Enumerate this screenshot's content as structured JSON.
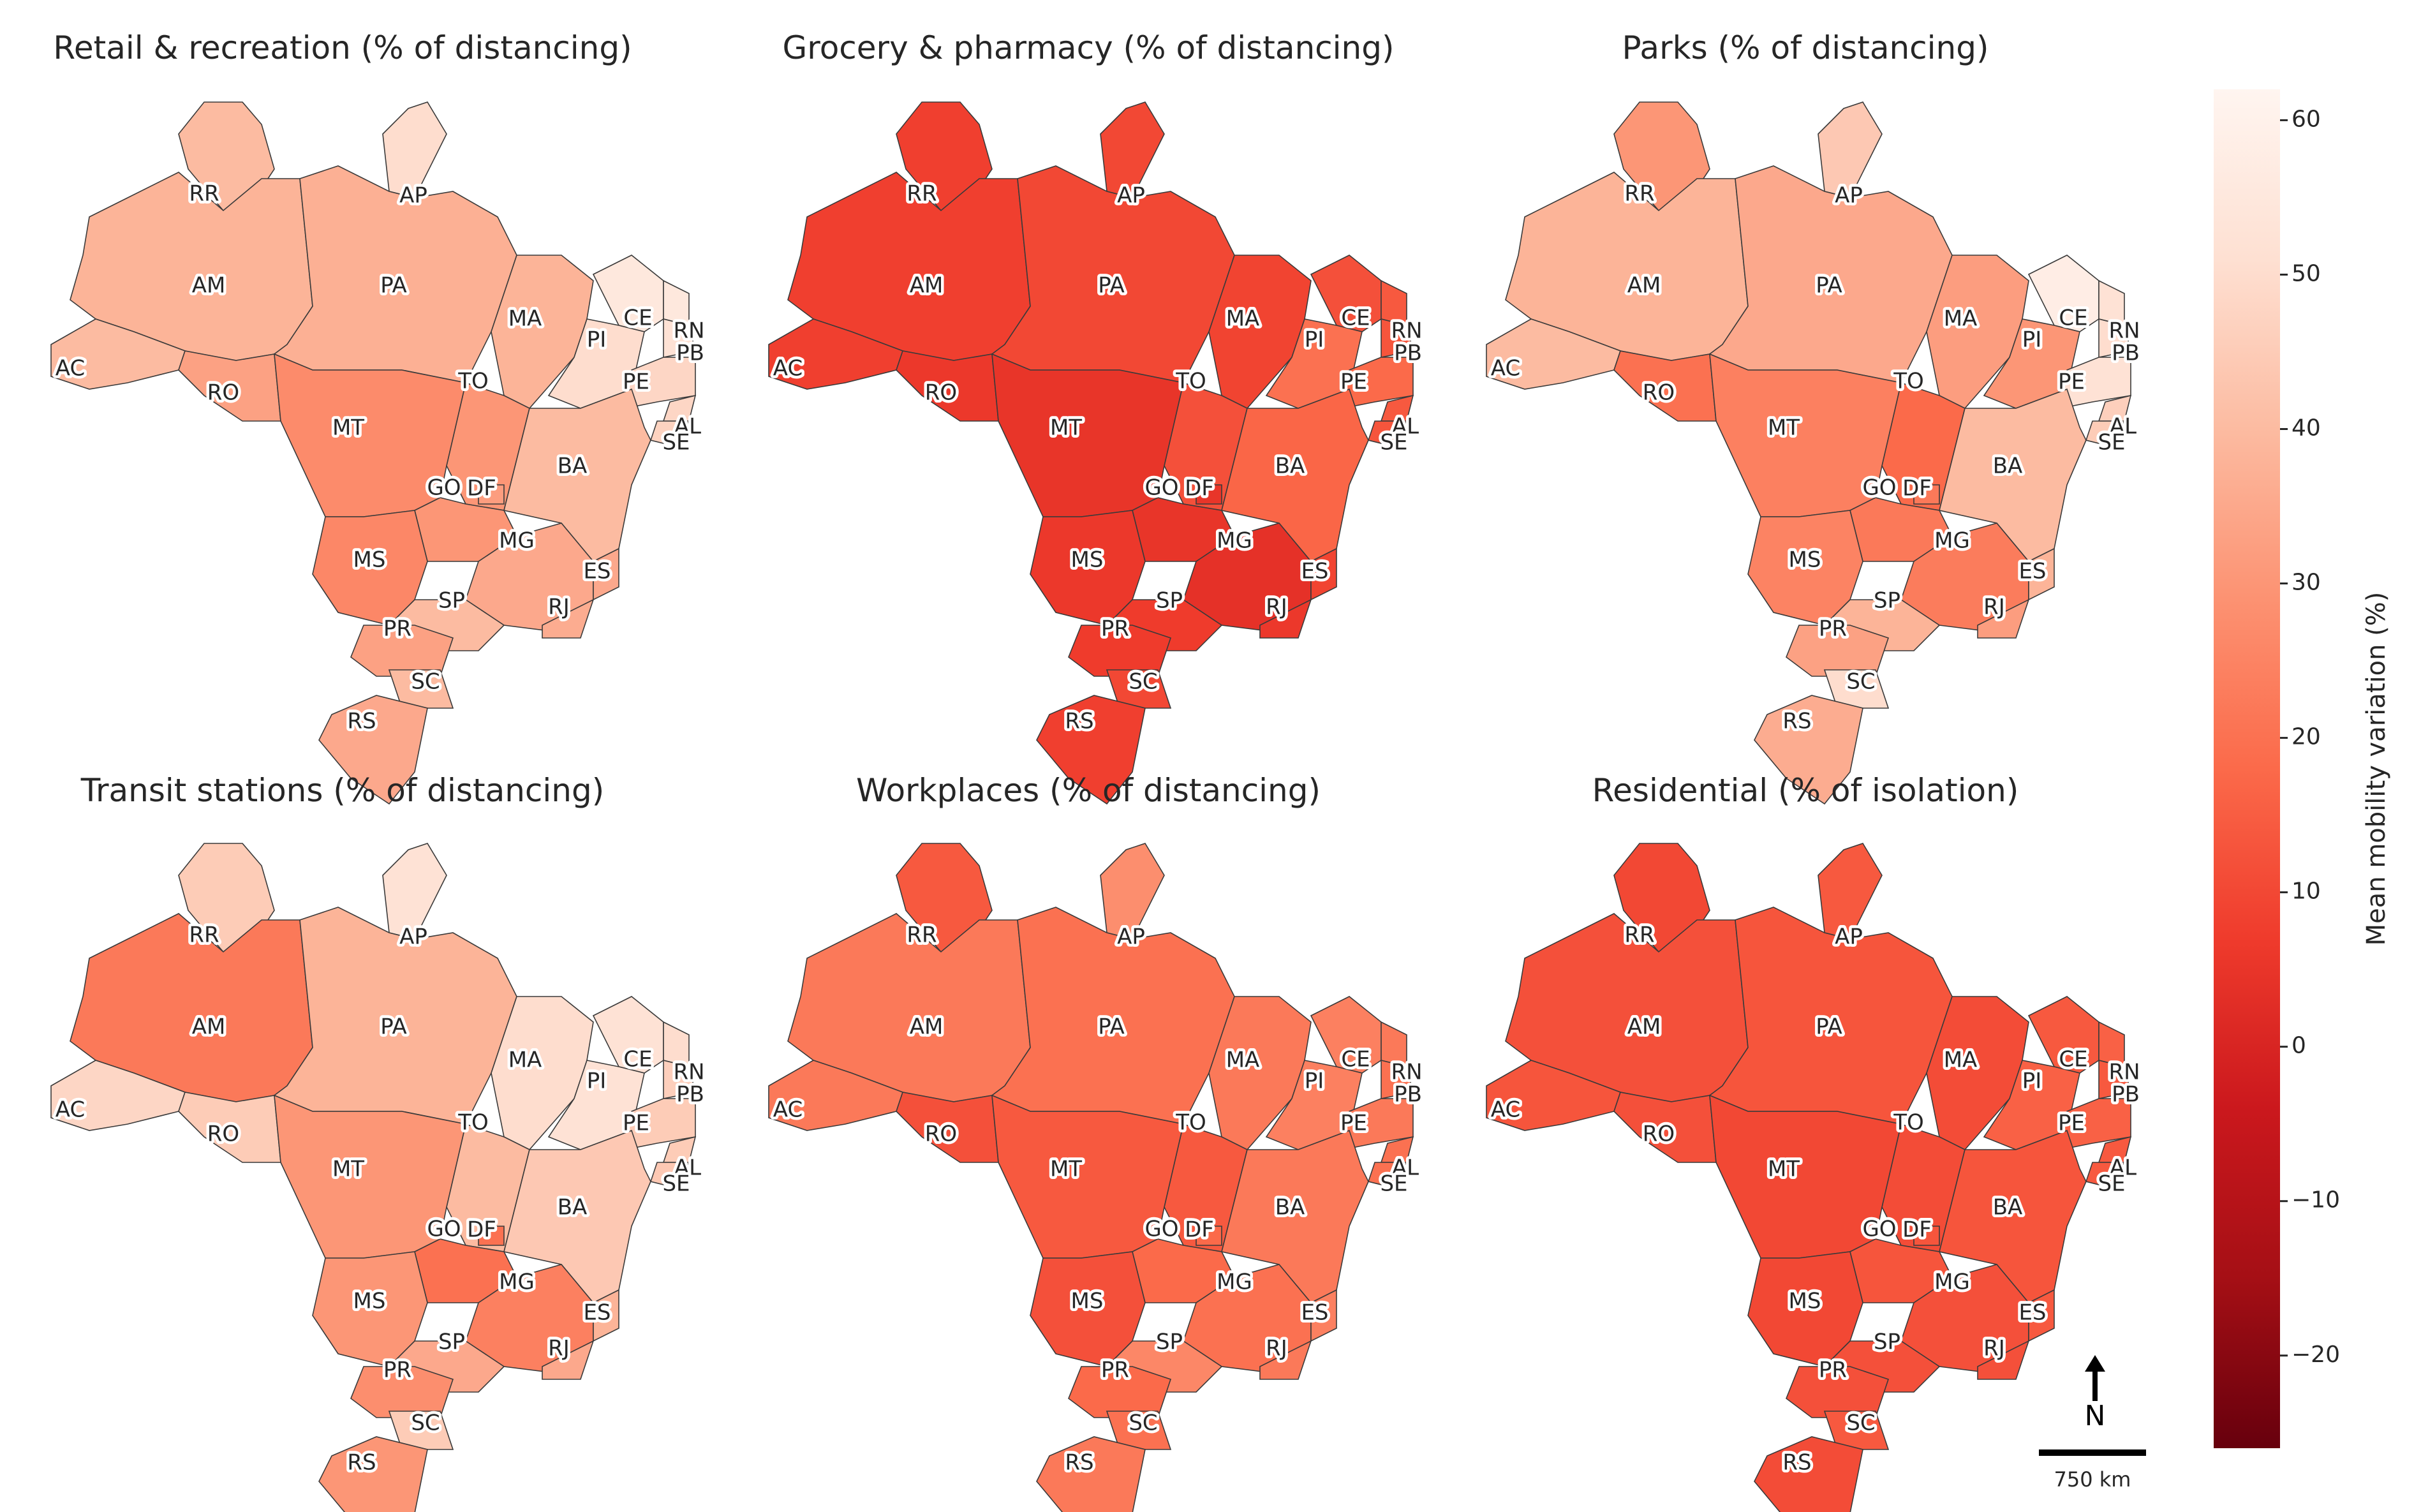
{
  "chart_data": {
    "type": "choropleth",
    "colorbar": {
      "label": "Mean mobility variation (%)",
      "range": [
        -26,
        62
      ],
      "ticks": [
        60,
        50,
        40,
        30,
        20,
        10,
        0,
        -10,
        -20
      ],
      "tick_labels": [
        "60",
        "50",
        "40",
        "30",
        "20",
        "10",
        "0",
        "−10",
        "−20"
      ]
    },
    "colormap": {
      "name": "Reds_r",
      "stops": [
        "#fff5f0",
        "#fee0d2",
        "#fcbba1",
        "#fc9272",
        "#fb6a4a",
        "#ef3b2c",
        "#cb181d",
        "#a50f15",
        "#67000d"
      ]
    },
    "scale_bar": {
      "label": "750 km"
    },
    "north_arrow": {
      "label": "N"
    },
    "states": [
      "RR",
      "AP",
      "AM",
      "PA",
      "MA",
      "CE",
      "RN",
      "PB",
      "PI",
      "PE",
      "AL",
      "SE",
      "AC",
      "RO",
      "TO",
      "MT",
      "BA",
      "GO",
      "DF",
      "MG",
      "ES",
      "MS",
      "SP",
      "RJ",
      "PR",
      "SC",
      "RS"
    ],
    "panels": [
      {
        "title": "Retail & recreation (% of distancing)",
        "values": {
          "RR": 40,
          "AP": 50,
          "AM": 38,
          "PA": 37,
          "MA": 38,
          "CE": 55,
          "RN": 55,
          "PB": 52,
          "PI": 50,
          "PE": 48,
          "AL": 48,
          "SE": 47,
          "AC": 40,
          "RO": 33,
          "TO": 30,
          "MT": 27,
          "BA": 40,
          "GO": 30,
          "DF": 32,
          "MG": 35,
          "ES": 35,
          "MS": 26,
          "SP": 40,
          "RJ": 36,
          "PR": 33,
          "SC": 40,
          "RS": 35
        }
      },
      {
        "title": "Grocery & pharmacy (% of distancing)",
        "values": {
          "RR": 8,
          "AP": 10,
          "AM": 8,
          "PA": 10,
          "MA": 9,
          "CE": 12,
          "RN": 14,
          "PB": 13,
          "PI": 20,
          "PE": 18,
          "AL": 14,
          "SE": 13,
          "AC": 8,
          "RO": 6,
          "TO": 12,
          "MT": 5,
          "BA": 17,
          "GO": 5,
          "DF": 5,
          "MG": 4,
          "ES": 9,
          "MS": 6,
          "SP": 7,
          "RJ": 6,
          "PR": 7,
          "SC": 10,
          "RS": 8
        }
      },
      {
        "title": "Parks (% of distancing)",
        "values": {
          "RR": 30,
          "AP": 44,
          "AM": 38,
          "PA": 35,
          "MA": 32,
          "CE": 58,
          "RN": 52,
          "PB": 50,
          "PI": 30,
          "PE": 52,
          "AL": 46,
          "SE": 45,
          "AC": 40,
          "RO": 20,
          "TO": 18,
          "MT": 24,
          "BA": 40,
          "GO": 22,
          "DF": 22,
          "MG": 23,
          "ES": 38,
          "MS": 25,
          "SP": 38,
          "RJ": 32,
          "PR": 33,
          "SC": 50,
          "RS": 36
        }
      },
      {
        "title": "Transit stations (% of distancing)",
        "values": {
          "RR": 45,
          "AP": 52,
          "AM": 22,
          "PA": 38,
          "MA": 50,
          "CE": 52,
          "RN": 50,
          "PB": 46,
          "PI": 52,
          "PE": 45,
          "AL": 45,
          "SE": 44,
          "AC": 48,
          "RO": 45,
          "TO": 40,
          "MT": 30,
          "BA": 44,
          "GO": 20,
          "DF": 20,
          "MG": 24,
          "ES": 38,
          "MS": 30,
          "SP": 35,
          "RJ": 35,
          "PR": 28,
          "SC": 45,
          "RS": 30
        }
      },
      {
        "title": "Workplaces (% of distancing)",
        "values": {
          "RR": 14,
          "AP": 28,
          "AM": 22,
          "PA": 20,
          "MA": 22,
          "CE": 24,
          "RN": 22,
          "PB": 20,
          "PI": 24,
          "PE": 22,
          "AL": 20,
          "SE": 20,
          "AC": 22,
          "RO": 12,
          "TO": 14,
          "MT": 14,
          "BA": 22,
          "GO": 18,
          "DF": 18,
          "MG": 20,
          "ES": 24,
          "MS": 12,
          "SP": 26,
          "RJ": 22,
          "PR": 18,
          "SC": 20,
          "RS": 22
        }
      },
      {
        "title": "Residential (% of isolation)",
        "values": {
          "RR": 10,
          "AP": 14,
          "AM": 12,
          "PA": 13,
          "MA": 11,
          "CE": 14,
          "RN": 16,
          "PB": 14,
          "PI": 16,
          "PE": 16,
          "AL": 14,
          "SE": 14,
          "AC": 13,
          "RO": 12,
          "TO": 11,
          "MT": 10,
          "BA": 13,
          "GO": 13,
          "DF": 13,
          "MG": 12,
          "ES": 14,
          "MS": 10,
          "SP": 12,
          "RJ": 12,
          "PR": 12,
          "SC": 14,
          "RS": 11
        }
      }
    ]
  }
}
